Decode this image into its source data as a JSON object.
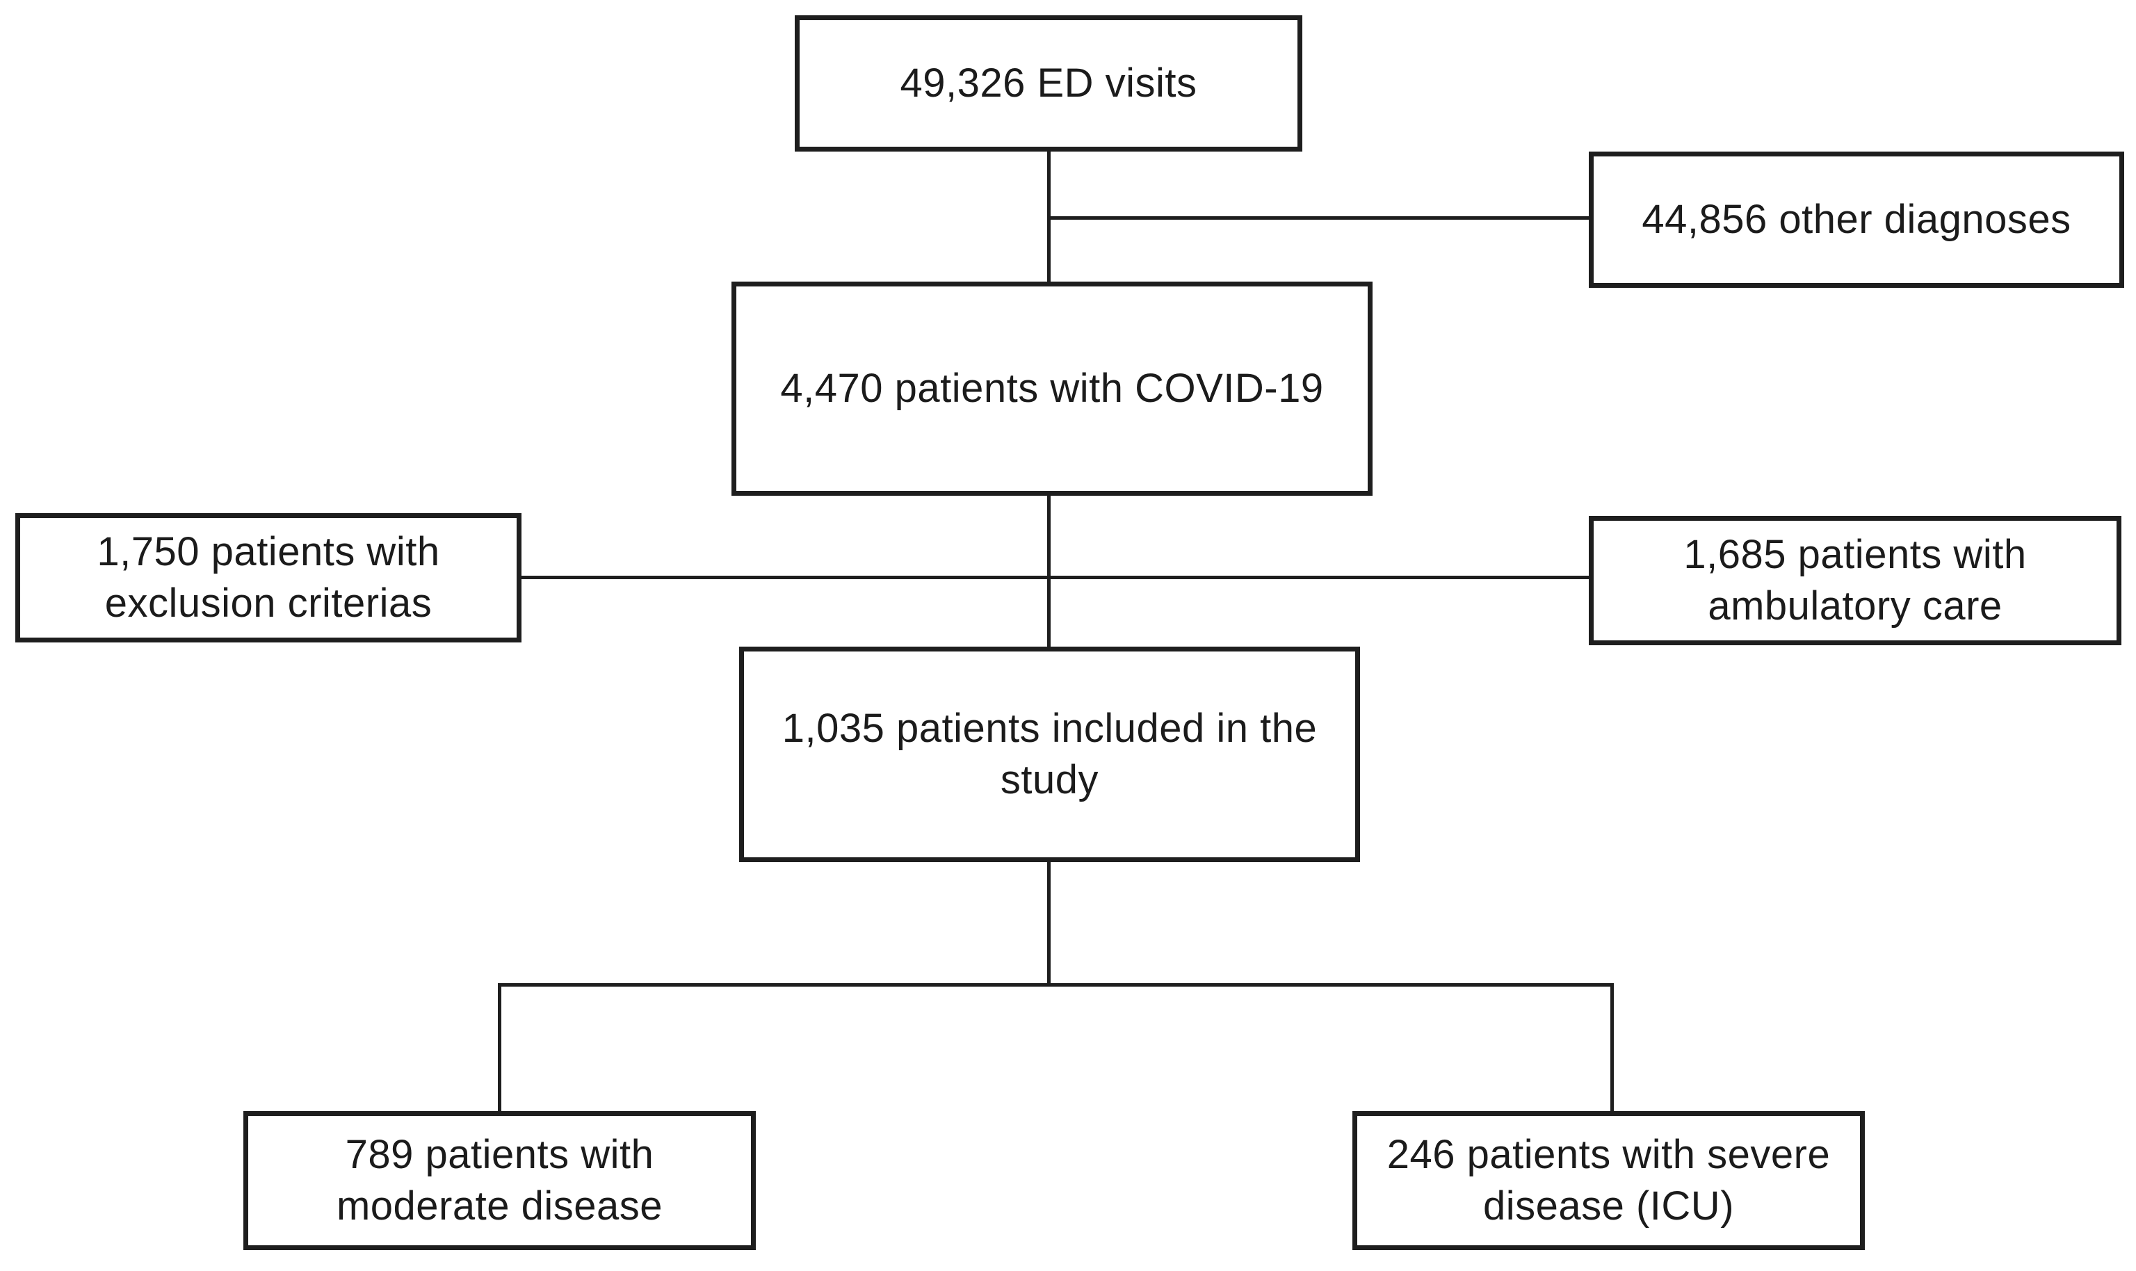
{
  "colors": {
    "background": "#ffffff",
    "box_fill": "#ffffff",
    "line": "#1e1e1e",
    "text": "#1b1b1b"
  },
  "nodes": {
    "ed_visits": {
      "label": "49,326 ED visits"
    },
    "other_diagnoses": {
      "label": "44,856 other diagnoses"
    },
    "covid_patients": {
      "label": "4,470 patients with COVID-19"
    },
    "exclusion": {
      "label": "1,750 patients with\nexclusion criterias"
    },
    "ambulatory": {
      "label": "1,685 patients with\nambulatory care"
    },
    "included": {
      "label": "1,035 patients included in the\nstudy"
    },
    "moderate": {
      "label": "789 patients with\nmoderate disease"
    },
    "severe": {
      "label": "246 patients with severe\ndisease (ICU)"
    }
  }
}
